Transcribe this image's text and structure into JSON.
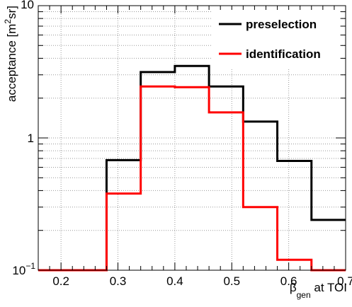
{
  "chart_data": {
    "type": "line",
    "chart_style": "step-histogram",
    "xlabel": {
      "main": "β",
      "sub": "gen",
      "rest": " at TOI"
    },
    "ylabel": {
      "main": "acceptance [m",
      "sup": "2",
      "rest": "sr]"
    },
    "xlim": [
      0.16,
      0.7
    ],
    "ylim": [
      0.1,
      10
    ],
    "yscale": "log",
    "grid": true,
    "x_ticks": [
      {
        "value": 0.2,
        "label": "0.2"
      },
      {
        "value": 0.3,
        "label": "0.3"
      },
      {
        "value": 0.4,
        "label": "0.4"
      },
      {
        "value": 0.5,
        "label": "0.5"
      },
      {
        "value": 0.6,
        "label": "0.6"
      },
      {
        "value": 0.7,
        "label": "0.7"
      }
    ],
    "y_ticks": [
      {
        "value": 0.1,
        "base": "10",
        "exp": "−1"
      },
      {
        "value": 1,
        "label": "1"
      },
      {
        "value": 10,
        "label": "10"
      }
    ],
    "bin_edges": [
      0.16,
      0.22,
      0.28,
      0.34,
      0.4,
      0.46,
      0.52,
      0.58,
      0.64,
      0.7
    ],
    "series": [
      {
        "name": "preselection",
        "color": "#000000",
        "values": [
          0.1,
          0.1,
          0.68,
          3.15,
          3.5,
          2.45,
          1.33,
          0.67,
          0.24
        ]
      },
      {
        "name": "identification",
        "color": "#ff0000",
        "values": [
          0.1,
          0.1,
          0.38,
          2.45,
          2.42,
          1.56,
          0.3,
          0.12,
          0.1
        ]
      }
    ],
    "legend_position": "top-right"
  }
}
